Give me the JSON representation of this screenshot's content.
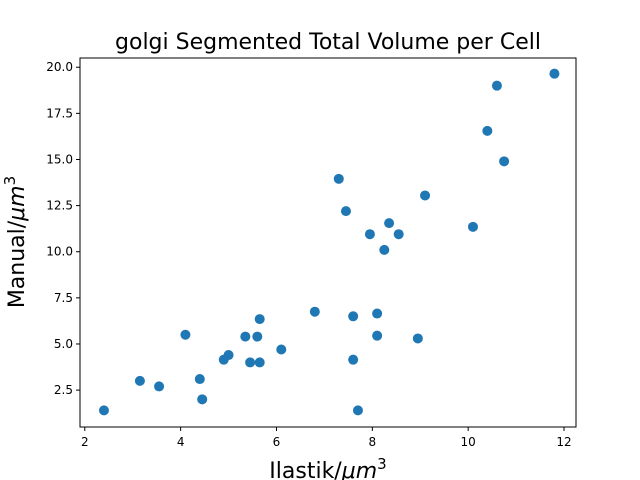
{
  "chart_data": {
    "type": "scatter",
    "title": "golgi Segmented Total Volume per Cell",
    "xlabel": "Ilastik/",
    "xlabel_unit": "μm",
    "xlabel_exp": "3",
    "ylabel": "Manual/",
    "ylabel_unit": "μm",
    "ylabel_exp": "3",
    "xlim": [
      1.9,
      12.25
    ],
    "ylim": [
      0.5,
      20.5
    ],
    "xticks": [
      2,
      4,
      6,
      8,
      10,
      12
    ],
    "xtick_labels": [
      "2",
      "4",
      "6",
      "8",
      "10",
      "12"
    ],
    "yticks": [
      2.5,
      5.0,
      7.5,
      10.0,
      12.5,
      15.0,
      17.5,
      20.0
    ],
    "ytick_labels": [
      "2.5",
      "5.0",
      "7.5",
      "10.0",
      "12.5",
      "15.0",
      "17.5",
      "20.0"
    ],
    "grid": false,
    "color": "#1f77b4",
    "points": [
      {
        "x": 2.4,
        "y": 1.4
      },
      {
        "x": 3.15,
        "y": 3.0
      },
      {
        "x": 3.55,
        "y": 2.7
      },
      {
        "x": 4.1,
        "y": 5.5
      },
      {
        "x": 4.4,
        "y": 3.1
      },
      {
        "x": 4.45,
        "y": 2.0
      },
      {
        "x": 4.9,
        "y": 4.15
      },
      {
        "x": 5.0,
        "y": 4.4
      },
      {
        "x": 5.35,
        "y": 5.4
      },
      {
        "x": 5.45,
        "y": 4.0
      },
      {
        "x": 5.6,
        "y": 5.4
      },
      {
        "x": 5.65,
        "y": 6.35
      },
      {
        "x": 5.65,
        "y": 4.0
      },
      {
        "x": 6.1,
        "y": 4.7
      },
      {
        "x": 6.8,
        "y": 6.75
      },
      {
        "x": 7.3,
        "y": 13.95
      },
      {
        "x": 7.45,
        "y": 12.2
      },
      {
        "x": 7.6,
        "y": 6.5
      },
      {
        "x": 7.6,
        "y": 4.15
      },
      {
        "x": 7.7,
        "y": 1.4
      },
      {
        "x": 7.95,
        "y": 10.95
      },
      {
        "x": 8.1,
        "y": 6.65
      },
      {
        "x": 8.1,
        "y": 5.45
      },
      {
        "x": 8.25,
        "y": 10.1
      },
      {
        "x": 8.35,
        "y": 11.55
      },
      {
        "x": 8.55,
        "y": 10.95
      },
      {
        "x": 8.95,
        "y": 5.3
      },
      {
        "x": 9.1,
        "y": 13.05
      },
      {
        "x": 10.1,
        "y": 11.35
      },
      {
        "x": 10.4,
        "y": 16.55
      },
      {
        "x": 10.6,
        "y": 19.0
      },
      {
        "x": 10.75,
        "y": 14.9
      },
      {
        "x": 11.8,
        "y": 19.65
      }
    ]
  }
}
